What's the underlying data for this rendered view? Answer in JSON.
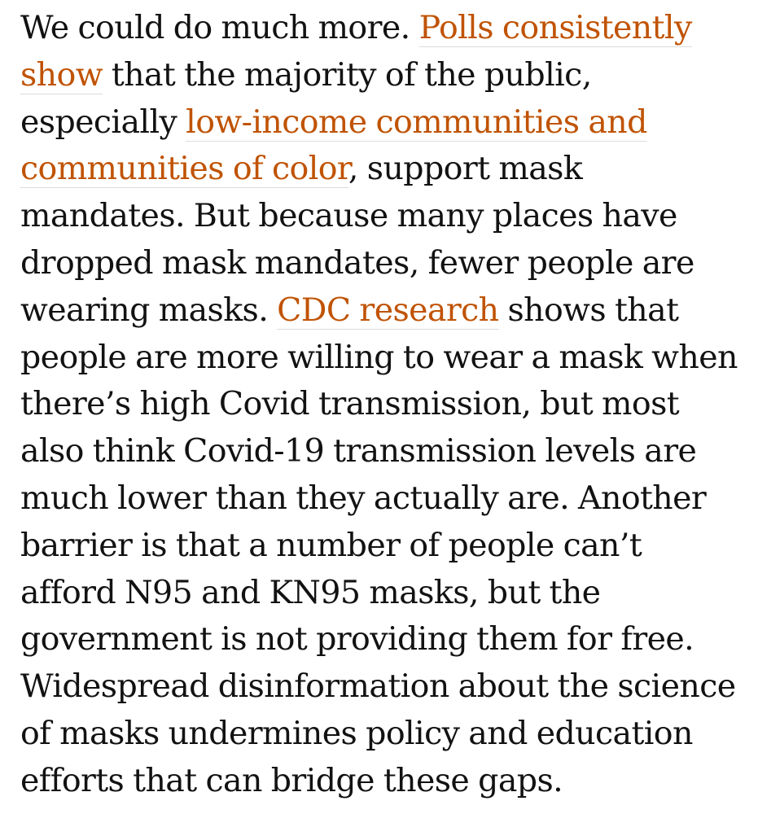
{
  "article": {
    "segments": [
      {
        "text": "We could do much more. ",
        "link": false
      },
      {
        "text": "Polls consistently show",
        "link": true
      },
      {
        "text": " that the majority of the public, especially ",
        "link": false
      },
      {
        "text": "low-income communities and communities of color",
        "link": true
      },
      {
        "text": ", support mask mandates. But because many places have dropped mask mandates, fewer people are wearing masks. ",
        "link": false
      },
      {
        "text": "CDC research",
        "link": true
      },
      {
        "text": " shows that people are more willing to wear a mask when there’s high Covid transmission, but most also think Covid-19 transmission levels are much lower than they actually are. Another barrier is that a number of people can’t afford N95 and KN95 masks, but the government is not providing them for free. Widespread disinformation about the science of masks undermines policy and education efforts that can bridge these gaps.",
        "link": false
      }
    ]
  },
  "colors": {
    "text": "#121212",
    "link": "#c05303",
    "link_underline": "#dcdcdc",
    "background": "#ffffff"
  }
}
